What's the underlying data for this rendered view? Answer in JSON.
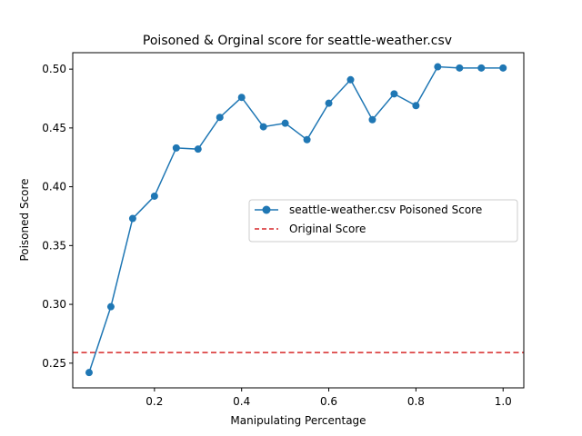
{
  "chart_data": {
    "type": "line",
    "title": "Poisoned & Orginal score for seattle-weather.csv",
    "xlabel": "Manipulating Percentage",
    "ylabel": "Poisoned Score",
    "xlim": [
      0.0125,
      1.0475
    ],
    "ylim": [
      0.229,
      0.514
    ],
    "xticks": [
      0.2,
      0.4,
      0.6,
      0.8,
      1.0
    ],
    "xtick_labels": [
      "0.2",
      "0.4",
      "0.6",
      "0.8",
      "1.0"
    ],
    "yticks": [
      0.25,
      0.3,
      0.35,
      0.4,
      0.45,
      0.5
    ],
    "ytick_labels": [
      "0.25",
      "0.30",
      "0.35",
      "0.40",
      "0.45",
      "0.50"
    ],
    "grid": false,
    "legend_position": "center-right",
    "series": [
      {
        "name": "seattle-weather.csv Poisoned Score",
        "color": "#1f77b4",
        "style": "solid",
        "marker": "circle",
        "x": [
          0.05,
          0.1,
          0.15,
          0.2,
          0.25,
          0.3,
          0.35,
          0.4,
          0.45,
          0.5,
          0.55,
          0.6,
          0.65,
          0.7,
          0.75,
          0.8,
          0.85,
          0.9,
          0.95,
          1.0
        ],
        "y": [
          0.242,
          0.298,
          0.373,
          0.392,
          0.433,
          0.432,
          0.459,
          0.476,
          0.451,
          0.454,
          0.44,
          0.471,
          0.491,
          0.457,
          0.479,
          0.469,
          0.502,
          0.501,
          0.501,
          0.501
        ]
      },
      {
        "name": "Original Score",
        "color": "#d62728",
        "style": "dashed",
        "hline": 0.259
      }
    ]
  }
}
